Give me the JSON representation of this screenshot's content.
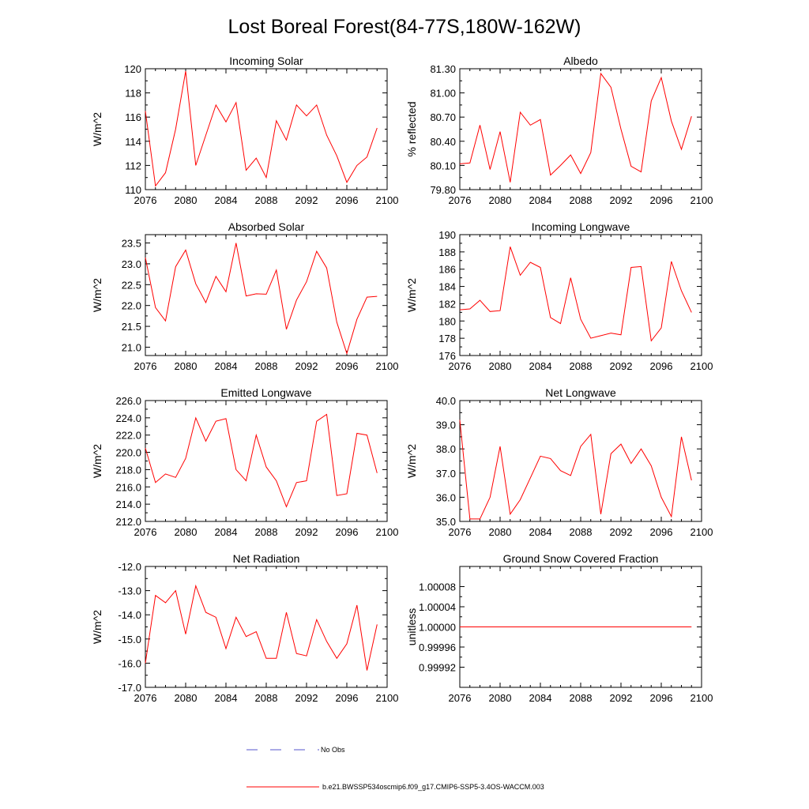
{
  "figure_title": "Lost Boreal Forest(84-77S,180W-162W)",
  "legend": {
    "obs": {
      "label": "No Obs",
      "color": "#5555cc"
    },
    "model": {
      "label": "b.e21.BWSSP534oscmip6.f09_g17.CMIP6-SSP5-3.4OS-WACCM.003",
      "color": "#ff0000"
    }
  },
  "chart_data": [
    {
      "type": "line",
      "title": "Incoming Solar",
      "ylabel": "W/m^2",
      "xlim": [
        2076,
        2100
      ],
      "ylim": [
        110,
        120
      ],
      "xticks": [
        "2076",
        "2080",
        "2084",
        "2088",
        "2092",
        "2096",
        "2100"
      ],
      "yticks": [
        "110",
        "112",
        "114",
        "116",
        "118",
        "120"
      ],
      "x": [
        2076,
        2077,
        2078,
        2079,
        2080,
        2081,
        2082,
        2083,
        2084,
        2085,
        2086,
        2087,
        2088,
        2089,
        2090,
        2091,
        2092,
        2093,
        2094,
        2095,
        2096,
        2097,
        2098,
        2099
      ],
      "series": [
        {
          "name": "b.e21.BWSSP534oscmip6.f09_g17.CMIP6-SSP5-3.4OS-WACCM.003",
          "values": [
            116.5,
            110.3,
            111.4,
            115.0,
            119.8,
            112.0,
            114.5,
            117.0,
            115.6,
            117.2,
            111.6,
            112.6,
            111.0,
            115.7,
            114.1,
            117.0,
            116.1,
            117.0,
            114.5,
            112.8,
            110.6,
            112.0,
            112.7,
            115.1
          ]
        }
      ]
    },
    {
      "type": "line",
      "title": "Albedo",
      "ylabel": "% reflected",
      "xlim": [
        2076,
        2100
      ],
      "ylim": [
        79.8,
        81.3
      ],
      "xticks": [
        "2076",
        "2080",
        "2084",
        "2088",
        "2092",
        "2096",
        "2100"
      ],
      "yticks": [
        "79.80",
        "80.10",
        "80.40",
        "80.70",
        "81.00",
        "81.30"
      ],
      "x": [
        2076,
        2077,
        2078,
        2079,
        2080,
        2081,
        2082,
        2083,
        2084,
        2085,
        2086,
        2087,
        2088,
        2089,
        2090,
        2091,
        2092,
        2093,
        2094,
        2095,
        2096,
        2097,
        2098,
        2099
      ],
      "series": [
        {
          "name": "b.e21.BWSSP534oscmip6.f09_g17.CMIP6-SSP5-3.4OS-WACCM.003",
          "values": [
            80.12,
            80.13,
            80.6,
            80.05,
            80.52,
            79.89,
            80.76,
            80.6,
            80.67,
            79.98,
            80.1,
            80.23,
            80.0,
            80.26,
            81.24,
            81.07,
            80.55,
            80.09,
            80.02,
            80.9,
            81.19,
            80.65,
            80.3,
            80.71
          ]
        }
      ]
    },
    {
      "type": "line",
      "title": "Absorbed Solar",
      "ylabel": "W/m^2",
      "xlim": [
        2076,
        2100
      ],
      "ylim": [
        20.8,
        23.7
      ],
      "xticks": [
        "2076",
        "2080",
        "2084",
        "2088",
        "2092",
        "2096",
        "2100"
      ],
      "yticks": [
        "21.0",
        "21.5",
        "22.0",
        "22.5",
        "23.0",
        "23.5"
      ],
      "x": [
        2076,
        2077,
        2078,
        2079,
        2080,
        2081,
        2082,
        2083,
        2084,
        2085,
        2086,
        2087,
        2088,
        2089,
        2090,
        2091,
        2092,
        2093,
        2094,
        2095,
        2096,
        2097,
        2098,
        2099
      ],
      "series": [
        {
          "name": "b.e21.BWSSP534oscmip6.f09_g17.CMIP6-SSP5-3.4OS-WACCM.003",
          "values": [
            23.15,
            21.95,
            21.63,
            22.93,
            23.33,
            22.52,
            22.07,
            22.7,
            22.33,
            23.5,
            22.23,
            22.28,
            22.27,
            22.85,
            21.43,
            22.13,
            22.57,
            23.3,
            22.9,
            21.6,
            20.85,
            21.67,
            22.2,
            22.22
          ]
        }
      ]
    },
    {
      "type": "line",
      "title": "Incoming Longwave",
      "ylabel": "W/m^2",
      "xlim": [
        2076,
        2100
      ],
      "ylim": [
        176,
        190
      ],
      "xticks": [
        "2076",
        "2080",
        "2084",
        "2088",
        "2092",
        "2096",
        "2100"
      ],
      "yticks": [
        "176",
        "178",
        "180",
        "182",
        "184",
        "186",
        "188",
        "190"
      ],
      "x": [
        2076,
        2077,
        2078,
        2079,
        2080,
        2081,
        2082,
        2083,
        2084,
        2085,
        2086,
        2087,
        2088,
        2089,
        2090,
        2091,
        2092,
        2093,
        2094,
        2095,
        2096,
        2097,
        2098,
        2099
      ],
      "series": [
        {
          "name": "b.e21.BWSSP534oscmip6.f09_g17.CMIP6-SSP5-3.4OS-WACCM.003",
          "values": [
            181.3,
            181.4,
            182.4,
            181.1,
            181.2,
            188.6,
            185.3,
            186.8,
            186.2,
            180.4,
            179.7,
            185.0,
            180.2,
            178.0,
            178.3,
            178.6,
            178.4,
            186.2,
            186.3,
            177.7,
            179.2,
            186.9,
            183.5,
            181.0
          ]
        }
      ]
    },
    {
      "type": "line",
      "title": "Emitted Longwave",
      "ylabel": "W/m^2",
      "xlim": [
        2076,
        2100
      ],
      "ylim": [
        212,
        226
      ],
      "xticks": [
        "2076",
        "2080",
        "2084",
        "2088",
        "2092",
        "2096",
        "2100"
      ],
      "yticks": [
        "212.0",
        "214.0",
        "216.0",
        "218.0",
        "220.0",
        "222.0",
        "224.0",
        "226.0"
      ],
      "x": [
        2076,
        2077,
        2078,
        2079,
        2080,
        2081,
        2082,
        2083,
        2084,
        2085,
        2086,
        2087,
        2088,
        2089,
        2090,
        2091,
        2092,
        2093,
        2094,
        2095,
        2096,
        2097,
        2098,
        2099
      ],
      "series": [
        {
          "name": "b.e21.BWSSP534oscmip6.f09_g17.CMIP6-SSP5-3.4OS-WACCM.003",
          "values": [
            220.5,
            216.5,
            217.5,
            217.1,
            219.3,
            224.0,
            221.3,
            223.6,
            223.9,
            218.0,
            216.7,
            222.0,
            218.3,
            216.7,
            213.7,
            216.5,
            216.7,
            223.6,
            224.4,
            215.0,
            215.2,
            222.2,
            222.0,
            217.6
          ]
        }
      ]
    },
    {
      "type": "line",
      "title": "Net Longwave",
      "ylabel": "W/m^2",
      "xlim": [
        2076,
        2100
      ],
      "ylim": [
        35,
        40
      ],
      "xticks": [
        "2076",
        "2080",
        "2084",
        "2088",
        "2092",
        "2096",
        "2100"
      ],
      "yticks": [
        "35.0",
        "36.0",
        "37.0",
        "38.0",
        "39.0",
        "40.0"
      ],
      "x": [
        2076,
        2077,
        2078,
        2079,
        2080,
        2081,
        2082,
        2083,
        2084,
        2085,
        2086,
        2087,
        2088,
        2089,
        2090,
        2091,
        2092,
        2093,
        2094,
        2095,
        2096,
        2097,
        2098,
        2099
      ],
      "series": [
        {
          "name": "b.e21.BWSSP534oscmip6.f09_g17.CMIP6-SSP5-3.4OS-WACCM.003",
          "values": [
            39.2,
            35.1,
            35.1,
            36.0,
            38.1,
            35.3,
            35.9,
            36.8,
            37.7,
            37.6,
            37.1,
            36.9,
            38.1,
            38.6,
            35.3,
            37.8,
            38.2,
            37.4,
            38.0,
            37.3,
            36.0,
            35.2,
            38.5,
            36.7
          ]
        }
      ]
    },
    {
      "type": "line",
      "title": "Net Radiation",
      "ylabel": "W/m^2",
      "xlim": [
        2076,
        2100
      ],
      "ylim": [
        -17,
        -12
      ],
      "xticks": [
        "2076",
        "2080",
        "2084",
        "2088",
        "2092",
        "2096",
        "2100"
      ],
      "yticks": [
        "-17.0",
        "-16.0",
        "-15.0",
        "-14.0",
        "-13.0",
        "-12.0"
      ],
      "x": [
        2076,
        2077,
        2078,
        2079,
        2080,
        2081,
        2082,
        2083,
        2084,
        2085,
        2086,
        2087,
        2088,
        2089,
        2090,
        2091,
        2092,
        2093,
        2094,
        2095,
        2096,
        2097,
        2098,
        2099
      ],
      "series": [
        {
          "name": "b.e21.BWSSP534oscmip6.f09_g17.CMIP6-SSP5-3.4OS-WACCM.003",
          "values": [
            -16.0,
            -13.2,
            -13.5,
            -13.0,
            -14.8,
            -12.8,
            -13.9,
            -14.1,
            -15.4,
            -14.1,
            -14.9,
            -14.7,
            -15.8,
            -15.8,
            -13.9,
            -15.6,
            -15.7,
            -14.2,
            -15.1,
            -15.8,
            -15.2,
            -13.6,
            -16.3,
            -14.4
          ]
        }
      ]
    },
    {
      "type": "line",
      "title": "Ground Snow Covered Fraction",
      "ylabel": "unitless",
      "xlim": [
        2076,
        2100
      ],
      "ylim": [
        0.99988,
        1.00012
      ],
      "xticks": [
        "2076",
        "2080",
        "2084",
        "2088",
        "2092",
        "2096",
        "2100"
      ],
      "yticks": [
        "0.99992",
        "0.99996",
        "1.00000",
        "1.00004",
        "1.00008"
      ],
      "ytick_values": [
        0.99992,
        0.99996,
        1.0,
        1.00004,
        1.00008
      ],
      "x": [
        2076,
        2077,
        2078,
        2079,
        2080,
        2081,
        2082,
        2083,
        2084,
        2085,
        2086,
        2087,
        2088,
        2089,
        2090,
        2091,
        2092,
        2093,
        2094,
        2095,
        2096,
        2097,
        2098,
        2099
      ],
      "series": [
        {
          "name": "b.e21.BWSSP534oscmip6.f09_g17.CMIP6-SSP5-3.4OS-WACCM.003",
          "values": [
            1,
            1,
            1,
            1,
            1,
            1,
            1,
            1,
            1,
            1,
            1,
            1,
            1,
            1,
            1,
            1,
            1,
            1,
            1,
            1,
            1,
            1,
            1,
            1
          ]
        }
      ]
    }
  ]
}
